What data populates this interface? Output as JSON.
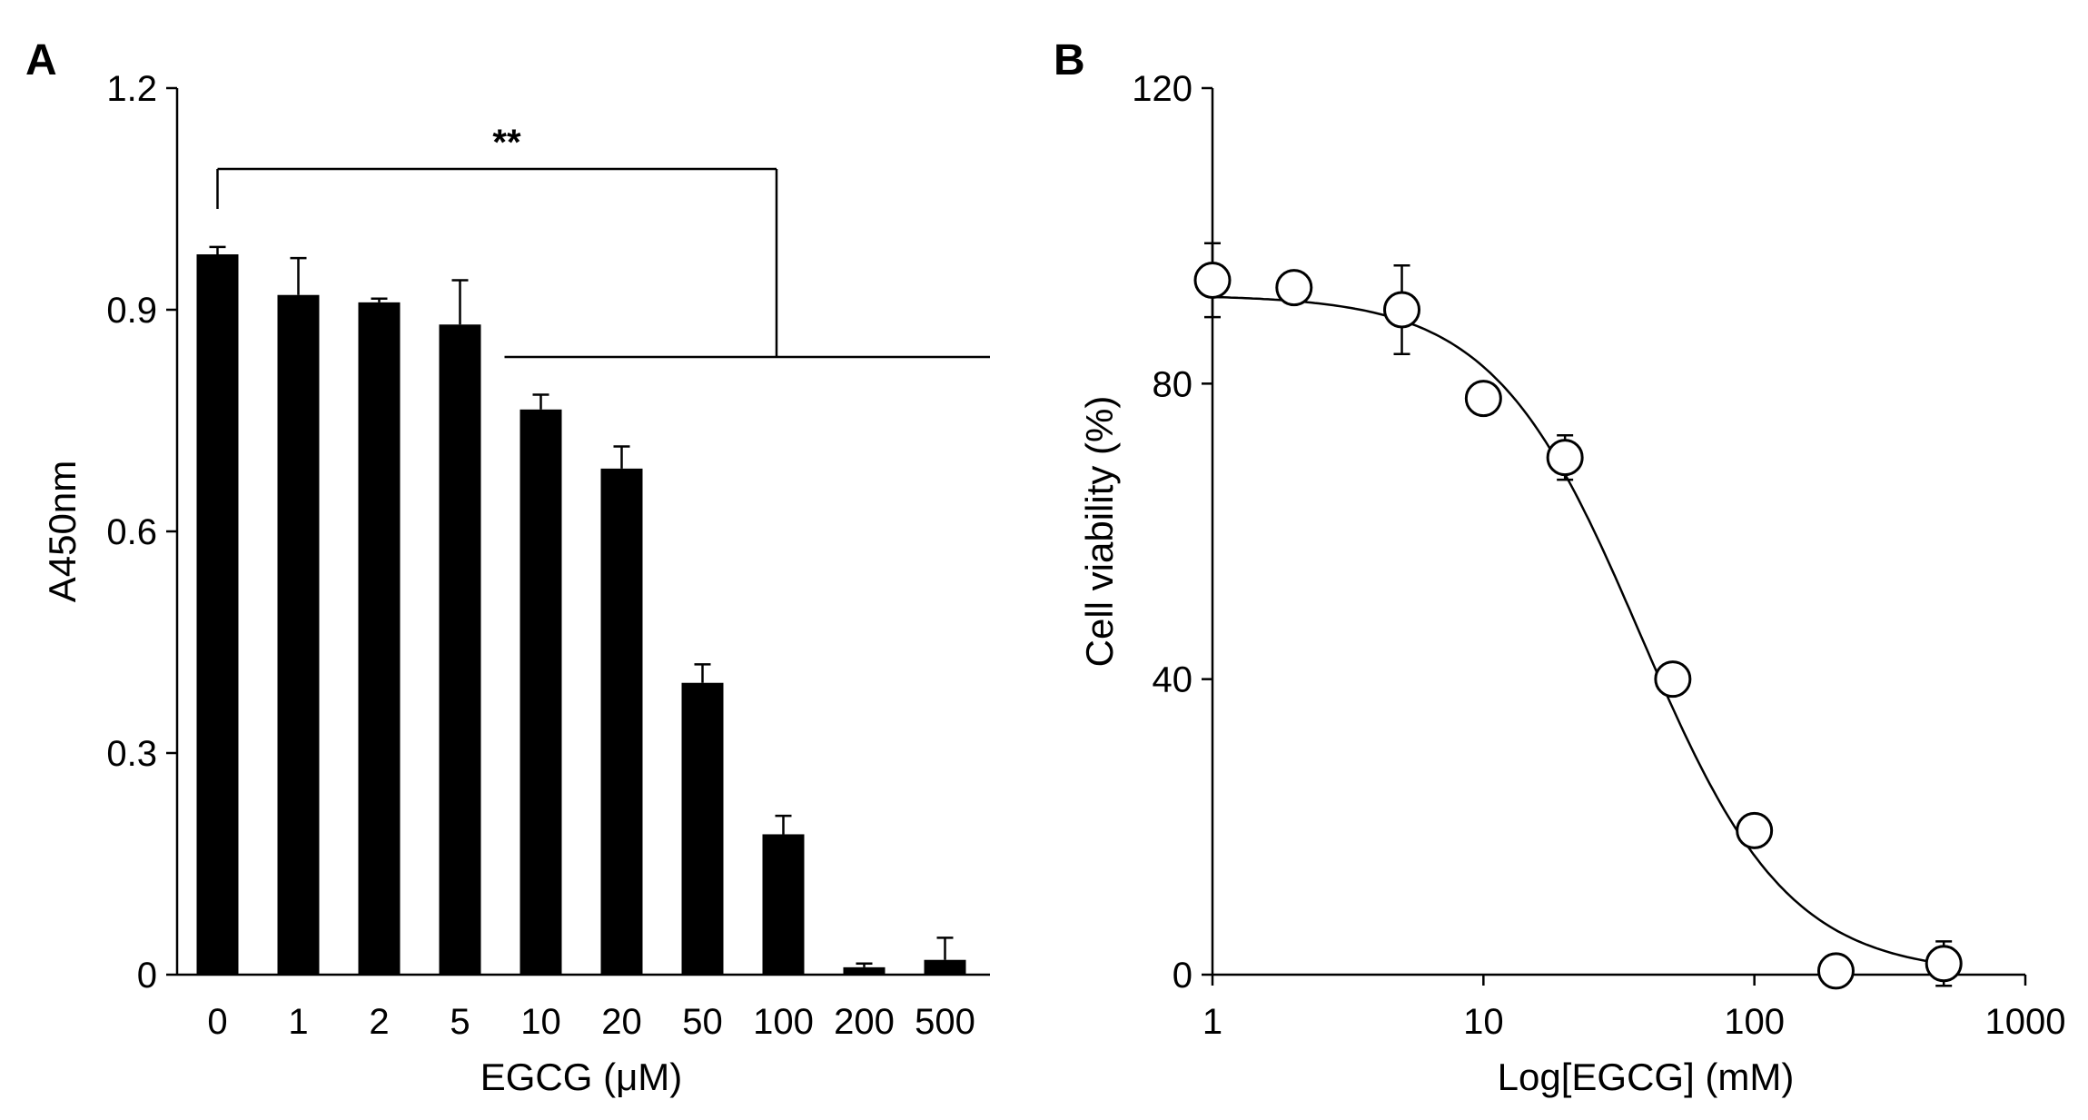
{
  "chart_data": [
    {
      "panel_label": "A",
      "type": "bar",
      "categories": [
        "0",
        "1",
        "2",
        "5",
        "10",
        "20",
        "50",
        "100",
        "200",
        "500"
      ],
      "values": [
        0.975,
        0.92,
        0.91,
        0.88,
        0.765,
        0.685,
        0.395,
        0.19,
        0.01,
        0.02
      ],
      "error_upper": [
        0.01,
        0.05,
        0.005,
        0.06,
        0.02,
        0.03,
        0.025,
        0.025,
        0.005,
        0.03
      ],
      "xlabel": "EGCG (μM)",
      "ylabel": "A450nm",
      "ylim": [
        0,
        1.2
      ],
      "yticks": [
        "0",
        "0.3",
        "0.6",
        "0.9",
        "1.2"
      ],
      "bar_color": "#000000",
      "significance": {
        "label": "**",
        "from_category": "0",
        "to_categories": [
          "10",
          "20",
          "50",
          "100",
          "200",
          "500"
        ]
      }
    },
    {
      "panel_label": "B",
      "type": "scatter",
      "x": [
        1,
        2,
        5,
        10,
        20,
        50,
        100,
        200,
        500
      ],
      "y": [
        94,
        93,
        90,
        78,
        70,
        40,
        19.5,
        0.5,
        1.5
      ],
      "error": [
        5,
        0.5,
        6,
        0.5,
        3,
        0.5,
        2,
        0.5,
        3
      ],
      "fit_curve": {
        "model": "4PL",
        "top": 92,
        "bottom": 0,
        "ic50": 38,
        "hill": 1.6
      },
      "xscale": "log",
      "xlim": [
        1,
        1000
      ],
      "xticks": [
        "1",
        "10",
        "100",
        "1000"
      ],
      "ylim": [
        0,
        120
      ],
      "yticks": [
        "0",
        "40",
        "80",
        "120"
      ],
      "xlabel": "Log[EGCG] (mM)",
      "ylabel": "Cell viability (%)",
      "marker": "open-circle"
    }
  ]
}
